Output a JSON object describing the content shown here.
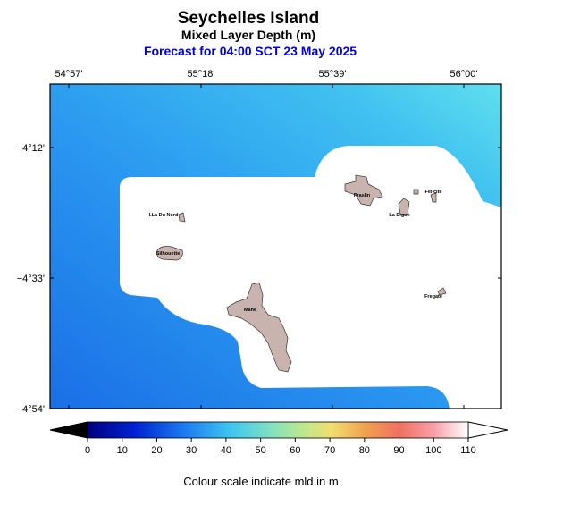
{
  "header": {
    "title": "Seychelles Island",
    "subtitle": "Mixed Layer Depth (m)",
    "forecast": "Forecast for  04:00 SCT 23 May 2025"
  },
  "map": {
    "lon_ticks": [
      "54°57'",
      "55°18'",
      "55°39'",
      "56°00'"
    ],
    "lat_ticks": [
      "−4°12'",
      "−4°33'",
      "−4°54'"
    ],
    "islands": [
      "I.La Du Nord",
      "Silhouette",
      "Praslin",
      "Felicite",
      "La Digue",
      "Fregate",
      "Mahe"
    ]
  },
  "colorbar": {
    "range": [
      0,
      110
    ],
    "ticks": [
      0,
      10,
      20,
      30,
      40,
      50,
      60,
      70,
      80,
      90,
      100,
      110
    ],
    "caption": "Colour scale indicate mld in m"
  }
}
